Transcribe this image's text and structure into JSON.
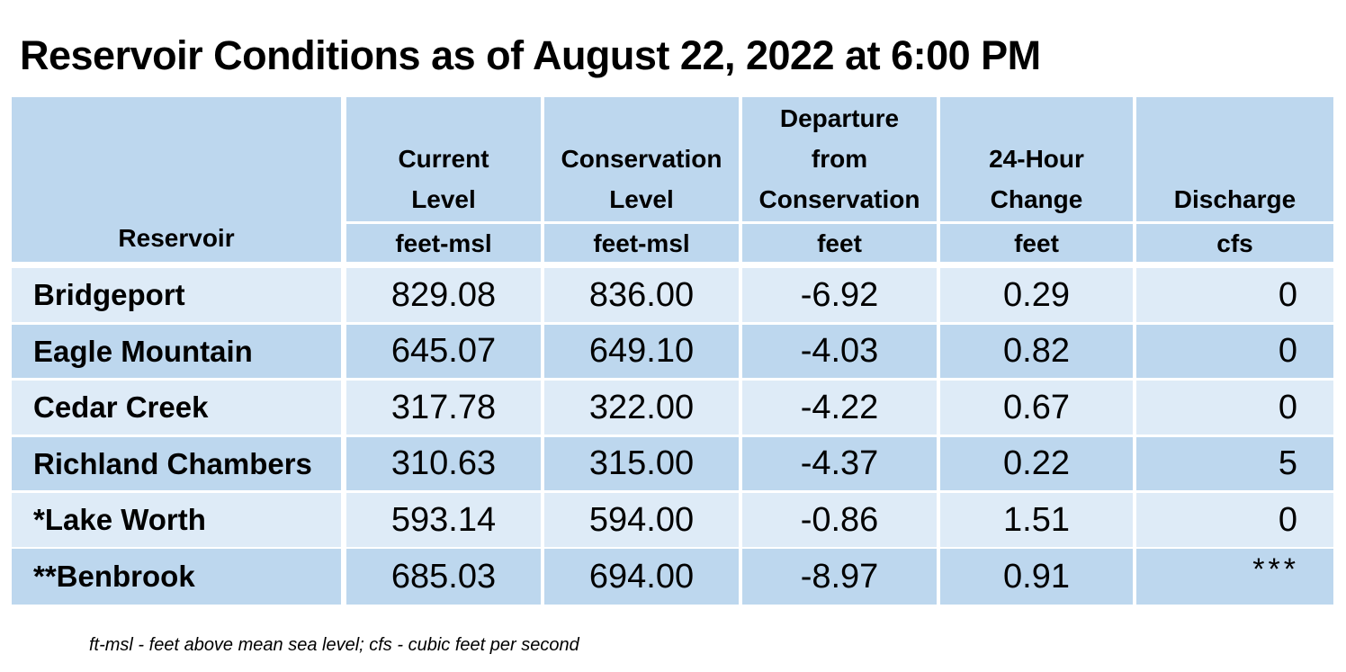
{
  "title": "Reservoir Conditions as of August 22, 2022 at 6:00 PM",
  "columns": [
    {
      "key": "reservoir",
      "label_lines": [
        "Reservoir"
      ],
      "unit": ""
    },
    {
      "key": "current",
      "label_lines": [
        "Current",
        "Level"
      ],
      "unit": "feet-msl"
    },
    {
      "key": "conservation",
      "label_lines": [
        "Conservation",
        "Level"
      ],
      "unit": "feet-msl"
    },
    {
      "key": "departure",
      "label_lines": [
        "Departure",
        "from",
        "Conservation"
      ],
      "unit": "feet"
    },
    {
      "key": "change",
      "label_lines": [
        "24-Hour",
        "Change"
      ],
      "unit": "feet"
    },
    {
      "key": "discharge",
      "label_lines": [
        "Discharge"
      ],
      "unit": "cfs"
    }
  ],
  "rows": [
    {
      "name": "Bridgeport",
      "current": "829.08",
      "conservation": "836.00",
      "departure": "-6.92",
      "change": "0.29",
      "discharge": "0"
    },
    {
      "name": "Eagle Mountain",
      "current": "645.07",
      "conservation": "649.10",
      "departure": "-4.03",
      "change": "0.82",
      "discharge": "0"
    },
    {
      "name": "Cedar Creek",
      "current": "317.78",
      "conservation": "322.00",
      "departure": "-4.22",
      "change": "0.67",
      "discharge": "0"
    },
    {
      "name": "Richland Chambers",
      "current": "310.63",
      "conservation": "315.00",
      "departure": "-4.37",
      "change": "0.22",
      "discharge": "5"
    },
    {
      "name": "*Lake Worth",
      "current": "593.14",
      "conservation": "594.00",
      "departure": "-0.86",
      "change": "1.51",
      "discharge": "0"
    },
    {
      "name": "**Benbrook",
      "current": "685.03",
      "conservation": "694.00",
      "departure": "-8.97",
      "change": "0.91",
      "discharge": "***"
    }
  ],
  "footnote": "ft-msl - feet above mean sea level; cfs - cubic feet per second",
  "colors": {
    "header_bg": "#bdd7ee",
    "row_light": "#deebf7",
    "row_dark": "#bdd7ee"
  },
  "chart_data": {
    "type": "table",
    "title": "Reservoir Conditions as of August 22, 2022 at 6:00 PM",
    "headers": [
      "Reservoir",
      "Current Level (feet-msl)",
      "Conservation Level (feet-msl)",
      "Departure from Conservation (feet)",
      "24-Hour Change (feet)",
      "Discharge (cfs)"
    ],
    "rows": [
      [
        "Bridgeport",
        829.08,
        836.0,
        -6.92,
        0.29,
        0
      ],
      [
        "Eagle Mountain",
        645.07,
        649.1,
        -4.03,
        0.82,
        0
      ],
      [
        "Cedar Creek",
        317.78,
        322.0,
        -4.22,
        0.67,
        0
      ],
      [
        "Richland Chambers",
        310.63,
        315.0,
        -4.37,
        0.22,
        5
      ],
      [
        "*Lake Worth",
        593.14,
        594.0,
        -0.86,
        1.51,
        0
      ],
      [
        "**Benbrook",
        685.03,
        694.0,
        -8.97,
        0.91,
        "***"
      ]
    ]
  }
}
